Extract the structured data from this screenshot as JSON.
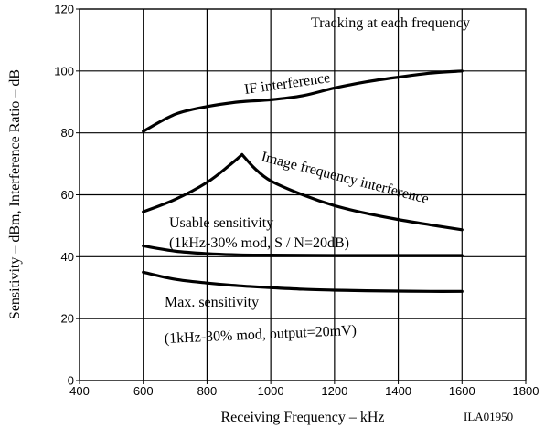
{
  "chart_data": {
    "type": "line",
    "title": "",
    "xlabel": "Receiving Frequency  –  kHz",
    "ylabel": "Sensitivity  –  dBm, Interference Ratio  –  dB",
    "xlim": [
      400,
      1800
    ],
    "ylim": [
      0,
      120
    ],
    "x_ticks": [
      400,
      600,
      800,
      1000,
      1200,
      1400,
      1600,
      1800
    ],
    "y_ticks": [
      0,
      20,
      40,
      60,
      80,
      100,
      120
    ],
    "grid": true,
    "series": [
      {
        "name": "IF interference",
        "points": [
          [
            600,
            80.5
          ],
          [
            700,
            86
          ],
          [
            800,
            88.5
          ],
          [
            900,
            90
          ],
          [
            1000,
            90.7
          ],
          [
            1100,
            92
          ],
          [
            1200,
            94.5
          ],
          [
            1300,
            96.5
          ],
          [
            1400,
            98
          ],
          [
            1500,
            99.3
          ],
          [
            1600,
            100
          ]
        ]
      },
      {
        "name": "Image frequency interference",
        "points": [
          [
            600,
            54.5
          ],
          [
            700,
            58.5
          ],
          [
            800,
            64
          ],
          [
            870,
            69.5
          ],
          [
            910,
            73
          ],
          [
            950,
            68.5
          ],
          [
            1000,
            64.5
          ],
          [
            1100,
            60
          ],
          [
            1200,
            56.5
          ],
          [
            1300,
            54
          ],
          [
            1400,
            52
          ],
          [
            1500,
            50.3
          ],
          [
            1600,
            48.7
          ]
        ]
      },
      {
        "name": "Usable sensitivity",
        "points": [
          [
            600,
            43.5
          ],
          [
            700,
            41.8
          ],
          [
            800,
            41
          ],
          [
            900,
            40.6
          ],
          [
            1000,
            40.5
          ],
          [
            1200,
            40.4
          ],
          [
            1400,
            40.4
          ],
          [
            1600,
            40.4
          ]
        ]
      },
      {
        "name": "Max. sensitivity",
        "points": [
          [
            600,
            35
          ],
          [
            700,
            32.7
          ],
          [
            800,
            31.5
          ],
          [
            900,
            30.6
          ],
          [
            1000,
            30
          ],
          [
            1100,
            29.5
          ],
          [
            1200,
            29.2
          ],
          [
            1300,
            29
          ],
          [
            1400,
            28.9
          ],
          [
            1500,
            28.8
          ],
          [
            1600,
            28.8
          ]
        ]
      }
    ],
    "annotations": {
      "top_right": "Tracking at each frequency",
      "if_label": "IF interference",
      "image_label": "Image frequency interference",
      "usable_line1": "Usable sensitivity",
      "usable_line2": "(1kHz-30% mod, S / N=20dB)",
      "max_line1": "Max. sensitivity",
      "max_line2": "(1kHz-30% mod, output=20mV)",
      "code": "ILA01950"
    }
  }
}
